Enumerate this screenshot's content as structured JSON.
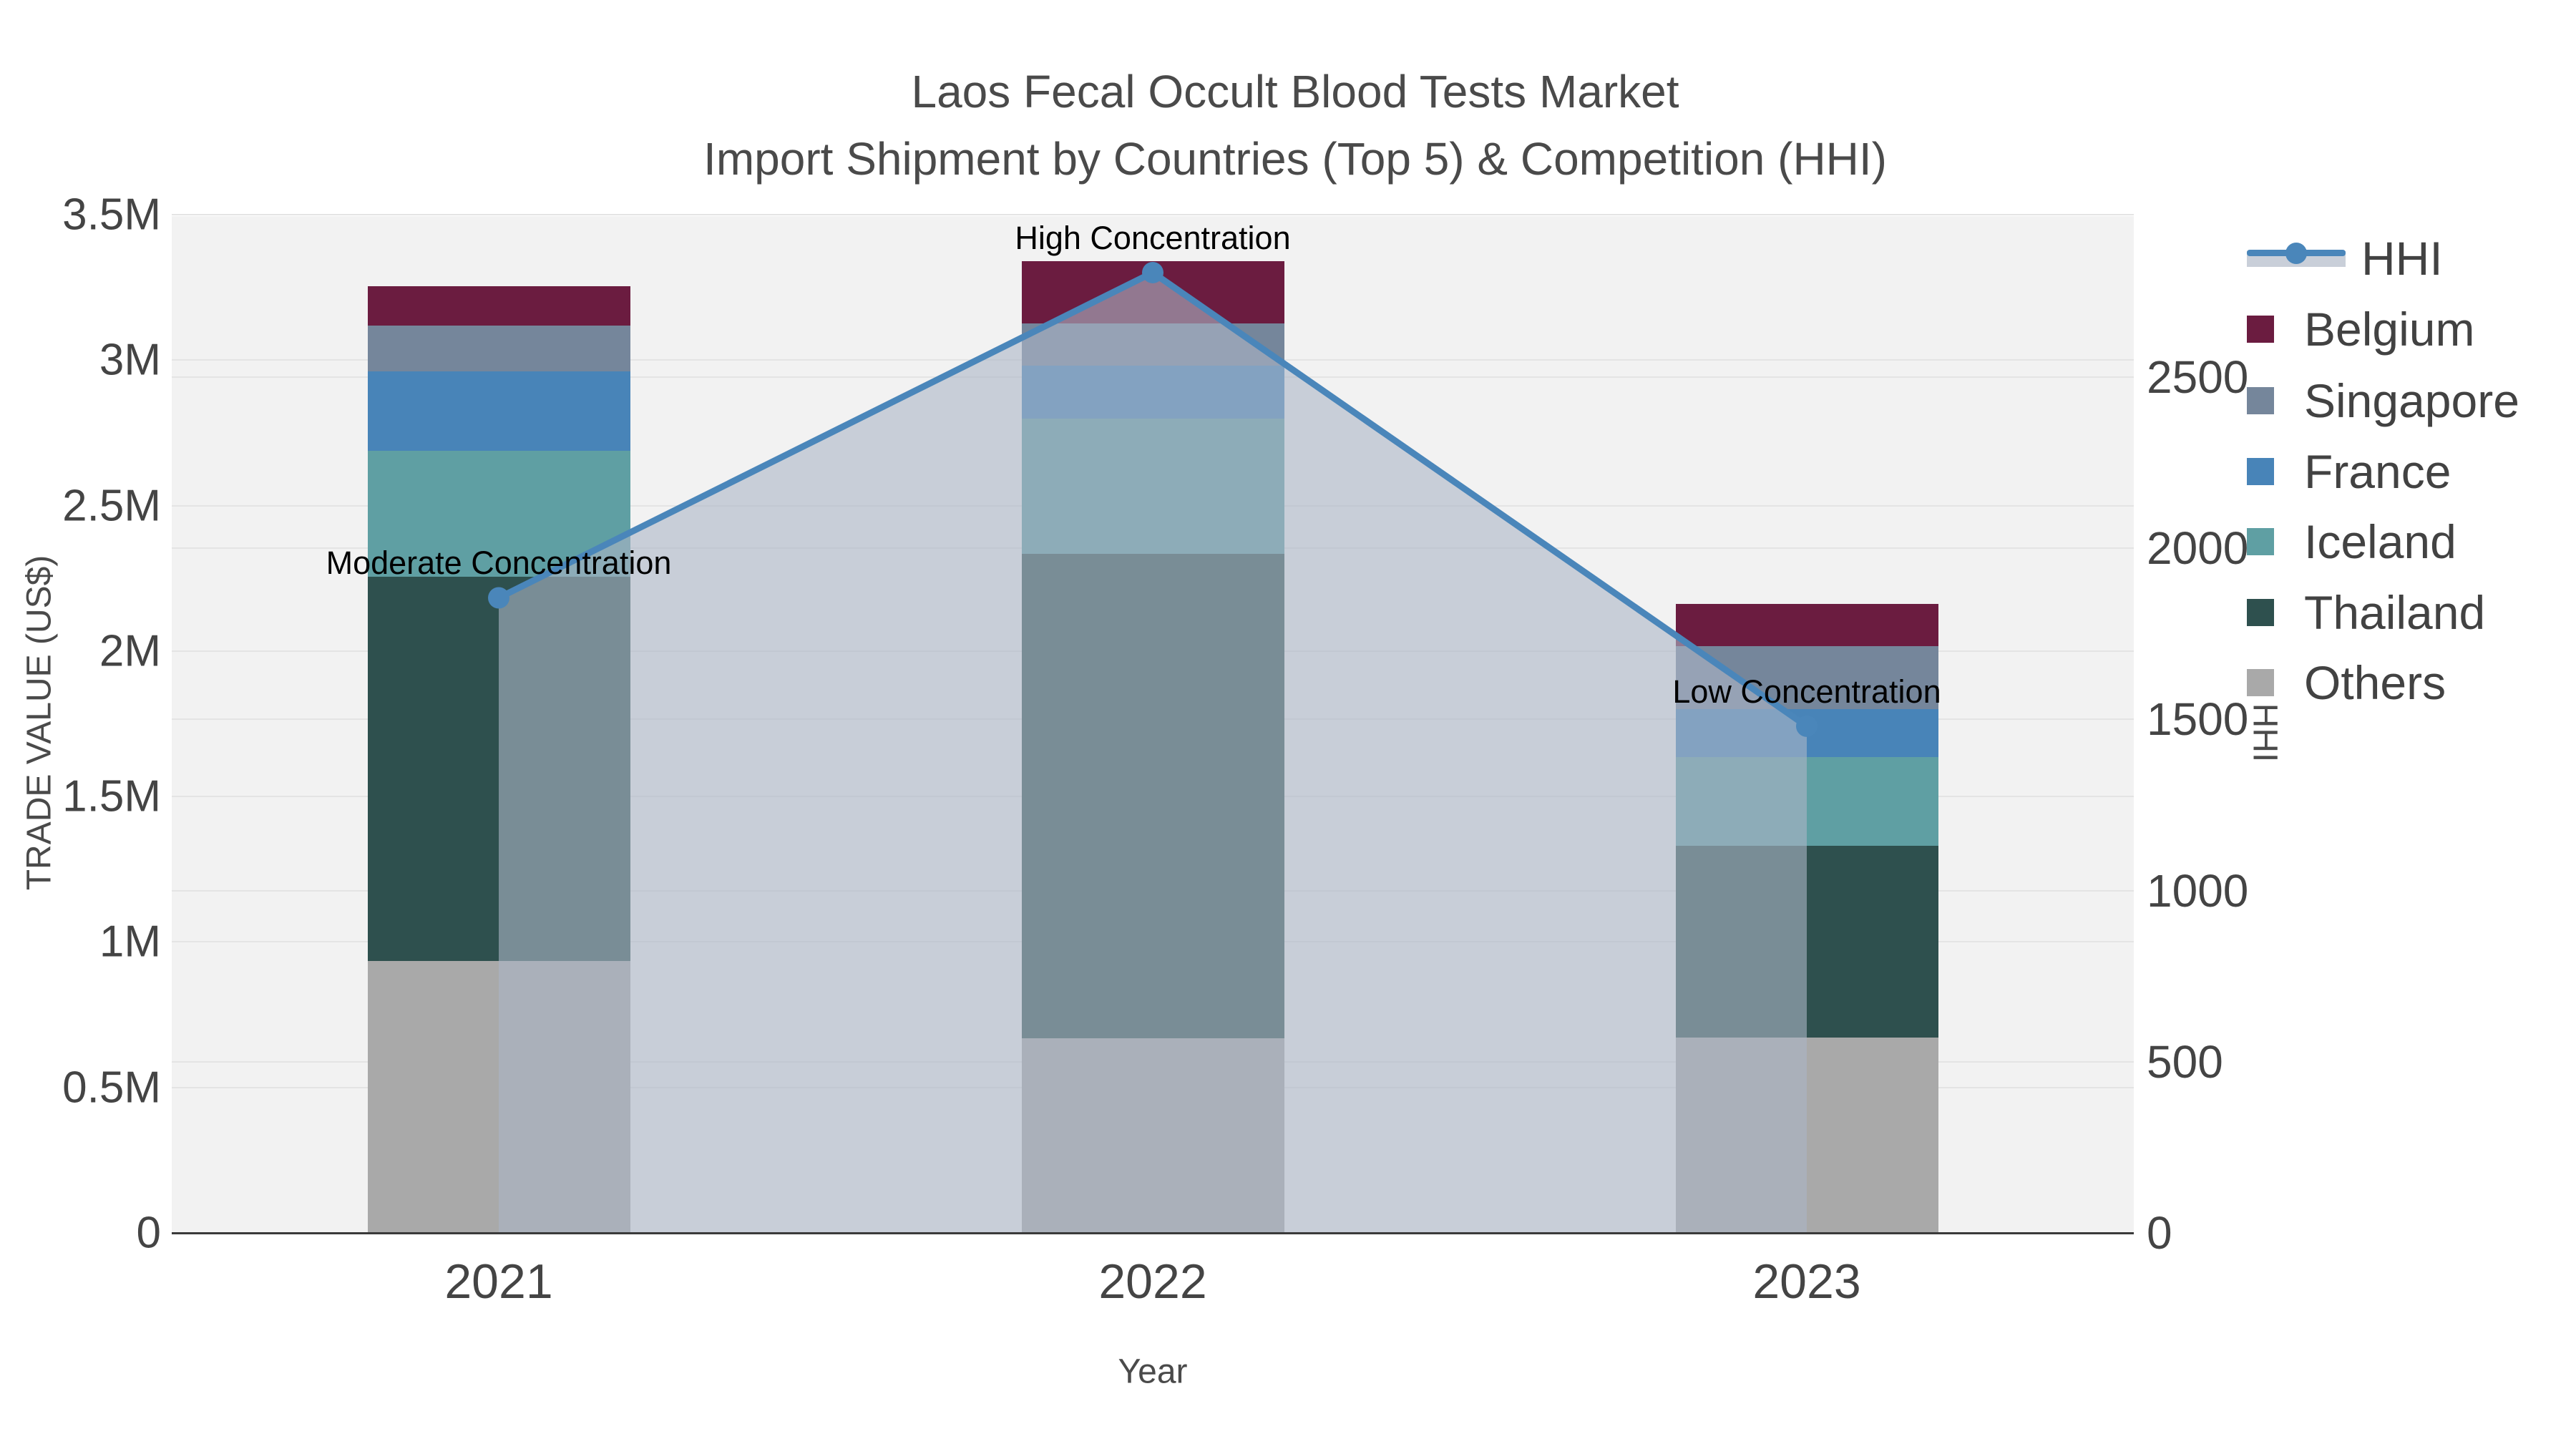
{
  "title": {
    "line1": "Laos Fecal Occult Blood Tests Market",
    "line2": "Import Shipment by Countries (Top 5) & Competition (HHI)"
  },
  "axes": {
    "x_title": "Year",
    "y_left_title": "TRADE VALUE (US$)",
    "y_right_title": "HHI"
  },
  "legend": {
    "entries": [
      {
        "label": "HHI",
        "type": "line",
        "color": "#4a86ba"
      },
      {
        "label": "Belgium",
        "type": "swatch",
        "color": "#6b1c40"
      },
      {
        "label": "Singapore",
        "type": "swatch",
        "color": "#75869b"
      },
      {
        "label": "France",
        "type": "swatch",
        "color": "#4884b8"
      },
      {
        "label": "Iceland",
        "type": "swatch",
        "color": "#5f9fa3"
      },
      {
        "label": "Thailand",
        "type": "swatch",
        "color": "#2e504e"
      },
      {
        "label": "Others",
        "type": "swatch",
        "color": "#a9a9a9"
      }
    ]
  },
  "chart_data": {
    "type": "bar",
    "subtype": "stacked-bars-with-line-area",
    "categories": [
      "2021",
      "2022",
      "2023"
    ],
    "series": [
      {
        "name": "Others",
        "color": "#a9a9a9",
        "values": [
          935000,
          669000,
          671000
        ]
      },
      {
        "name": "Thailand",
        "color": "#2e504e",
        "values": [
          1320000,
          1665000,
          659000
        ]
      },
      {
        "name": "Iceland",
        "color": "#5f9fa3",
        "values": [
          434000,
          464000,
          306000
        ]
      },
      {
        "name": "France",
        "color": "#4884b8",
        "values": [
          272000,
          183000,
          165000
        ]
      },
      {
        "name": "Singapore",
        "color": "#75869b",
        "values": [
          158000,
          146000,
          217000
        ]
      },
      {
        "name": "Belgium",
        "color": "#6b1c40",
        "values": [
          136000,
          212000,
          143000
        ]
      }
    ],
    "line_series": {
      "name": "HHI",
      "values": [
        1855,
        2805,
        1480
      ],
      "color": "#4a86ba",
      "fill_color": "rgba(172,182,198,0.6)",
      "axis": "right"
    },
    "annotations": [
      {
        "text": "Moderate Concentration",
        "category": "2021",
        "hhi": 1855
      },
      {
        "text": "High Concentration",
        "category": "2022",
        "hhi": 2805
      },
      {
        "text": "Low Concentration",
        "category": "2023",
        "hhi": 1480
      }
    ],
    "title": "Laos Fecal Occult Blood Tests Market — Import Shipment by Countries (Top 5) & Competition (HHI)",
    "xlabel": "Year",
    "ylabel_left": "TRADE VALUE (US$)",
    "ylabel_right": "HHI",
    "y_left_ticks": [
      "0",
      "0.5M",
      "1M",
      "1.5M",
      "2M",
      "2.5M",
      "3M",
      "3.5M"
    ],
    "y_left_tick_values": [
      0,
      500000,
      1000000,
      1500000,
      2000000,
      2500000,
      3000000,
      3500000
    ],
    "y_left_range": [
      0,
      3500000
    ],
    "y_right_ticks": [
      "0",
      "500",
      "1000",
      "1500",
      "2000",
      "2500"
    ],
    "y_right_tick_values": [
      0,
      500,
      1000,
      1500,
      2000,
      2500
    ],
    "y_right_range": [
      0,
      2970
    ],
    "grid": true,
    "legend_position": "right"
  }
}
